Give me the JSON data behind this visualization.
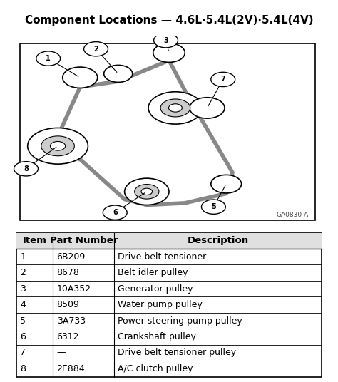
{
  "title": "Component Locations — 4.6L·5.4L(2V)·5.4L(4V)",
  "table_headers": [
    "Item",
    "Part Number",
    "Description"
  ],
  "table_rows": [
    [
      "1",
      "6B209",
      "Drive belt tensioner"
    ],
    [
      "2",
      "8678",
      "Belt idler pulley"
    ],
    [
      "3",
      "10A352",
      "Generator pulley"
    ],
    [
      "4",
      "8509",
      "Water pump pulley"
    ],
    [
      "5",
      "3A733",
      "Power steering pump pulley"
    ],
    [
      "6",
      "6312",
      "Crankshaft pulley"
    ],
    [
      "7",
      "—",
      "Drive belt tensioner pulley"
    ],
    [
      "8",
      "2E884",
      "A/C clutch pulley"
    ]
  ],
  "background_color": "#ffffff",
  "title_fontsize": 11,
  "table_fontsize": 9,
  "header_fontsize": 9.5,
  "image_label": "GA0830-A"
}
